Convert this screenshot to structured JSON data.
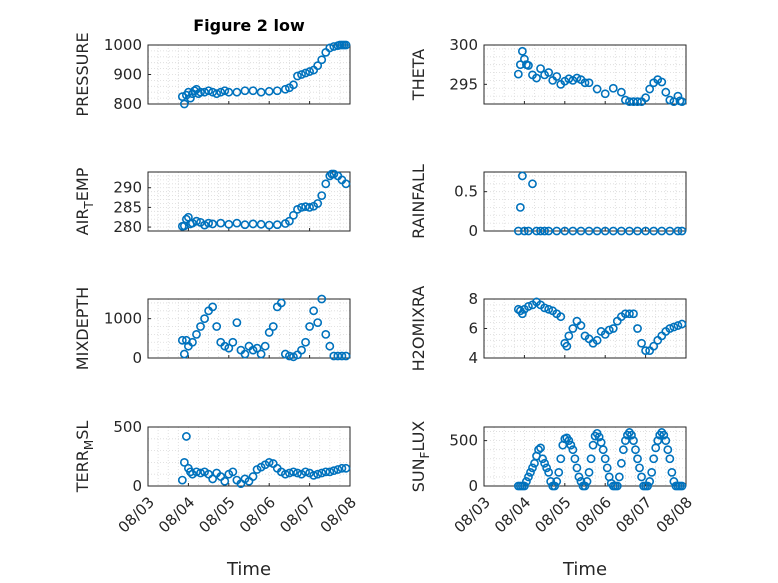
{
  "colors": {
    "marker": "#0072BD",
    "axis": "#262626",
    "grid": "#d9d9d9"
  },
  "chart_data": [
    {
      "type": "scatter",
      "title": "Figure 2 low",
      "ylabel": "PRESSURE",
      "ylim": [
        800,
        1000
      ],
      "yticks": [
        800,
        900,
        1000
      ],
      "grid": true,
      "x": [
        0.85,
        0.9,
        0.95,
        1.0,
        1.05,
        1.1,
        1.15,
        1.2,
        1.25,
        1.3,
        1.4,
        1.5,
        1.6,
        1.7,
        1.8,
        1.9,
        2.0,
        2.2,
        2.4,
        2.6,
        2.8,
        3.0,
        3.2,
        3.4,
        3.5,
        3.6,
        3.7,
        3.8,
        3.9,
        4.0,
        4.1,
        4.2,
        4.3,
        4.4,
        4.5,
        4.6,
        4.7,
        4.75,
        4.8,
        4.85,
        4.9
      ],
      "y": [
        825,
        800,
        830,
        840,
        820,
        835,
        845,
        850,
        835,
        840,
        840,
        845,
        840,
        835,
        840,
        845,
        840,
        840,
        845,
        845,
        840,
        843,
        845,
        850,
        855,
        865,
        895,
        900,
        905,
        910,
        915,
        930,
        950,
        975,
        990,
        995,
        998,
        1000,
        1000,
        1000,
        1000
      ]
    },
    {
      "type": "scatter",
      "ylabel": "THETA",
      "ylim": [
        292.5,
        300
      ],
      "yticks": [
        295,
        300
      ],
      "grid": true,
      "x": [
        0.85,
        0.9,
        0.95,
        1.0,
        1.05,
        1.1,
        1.2,
        1.3,
        1.4,
        1.5,
        1.6,
        1.7,
        1.8,
        1.9,
        2.0,
        2.1,
        2.2,
        2.3,
        2.4,
        2.5,
        2.6,
        2.8,
        3.0,
        3.2,
        3.4,
        3.5,
        3.6,
        3.7,
        3.8,
        3.9,
        4.0,
        4.1,
        4.2,
        4.3,
        4.4,
        4.5,
        4.6,
        4.7,
        4.8,
        4.85,
        4.9
      ],
      "y": [
        296.3,
        297.5,
        299.2,
        298.2,
        297.5,
        297.4,
        296.2,
        295.8,
        297.0,
        296.2,
        296.5,
        295.5,
        296.0,
        295.0,
        295.4,
        295.7,
        295.5,
        295.8,
        295.6,
        295.2,
        295.2,
        294.4,
        293.8,
        294.5,
        294.0,
        293.0,
        292.8,
        292.8,
        292.8,
        292.8,
        293.3,
        294.4,
        295.2,
        295.6,
        295.3,
        294.0,
        293.0,
        292.8,
        293.5,
        292.9,
        292.8
      ]
    },
    {
      "type": "scatter",
      "ylabel": "AIR_TEMP",
      "ylim": [
        279,
        294
      ],
      "yticks": [
        280,
        285,
        290
      ],
      "grid": true,
      "x": [
        0.85,
        0.9,
        0.95,
        1.0,
        1.05,
        1.1,
        1.2,
        1.3,
        1.4,
        1.5,
        1.6,
        1.8,
        2.0,
        2.2,
        2.4,
        2.6,
        2.8,
        3.0,
        3.2,
        3.4,
        3.5,
        3.6,
        3.7,
        3.8,
        3.9,
        4.0,
        4.1,
        4.2,
        4.3,
        4.4,
        4.5,
        4.55,
        4.6,
        4.7,
        4.8,
        4.9
      ],
      "y": [
        280.2,
        280.3,
        282.0,
        282.5,
        280.8,
        281.0,
        281.5,
        281.2,
        280.5,
        281.0,
        280.8,
        281.0,
        280.7,
        281.0,
        280.6,
        280.8,
        280.7,
        280.5,
        280.6,
        280.9,
        281.5,
        283.0,
        284.5,
        285.0,
        285.2,
        285.0,
        285.3,
        286.0,
        288.0,
        291.0,
        293.0,
        293.5,
        293.5,
        293.0,
        292.0,
        291.0
      ]
    },
    {
      "type": "scatter",
      "ylabel": "RAINFALL",
      "ylim": [
        0,
        0.75
      ],
      "yticks": [
        0,
        0.5
      ],
      "grid": true,
      "x": [
        0.85,
        0.9,
        0.95,
        1.0,
        1.1,
        1.2,
        1.3,
        1.4,
        1.5,
        1.6,
        1.8,
        2.0,
        2.2,
        2.4,
        2.6,
        2.8,
        3.0,
        3.2,
        3.4,
        3.6,
        3.8,
        4.0,
        4.2,
        4.4,
        4.6,
        4.8,
        4.9
      ],
      "y": [
        0,
        0.3,
        0.7,
        0,
        0,
        0.6,
        0,
        0,
        0,
        0,
        0,
        0,
        0,
        0,
        0,
        0,
        0,
        0,
        0,
        0,
        0,
        0,
        0,
        0,
        0,
        0,
        0
      ]
    },
    {
      "type": "scatter",
      "ylabel": "MIXDEPTH",
      "ylim": [
        0,
        1500
      ],
      "yticks": [
        0,
        1000
      ],
      "grid": true,
      "x": [
        0.85,
        0.9,
        0.95,
        1.0,
        1.1,
        1.2,
        1.3,
        1.4,
        1.5,
        1.6,
        1.7,
        1.8,
        1.9,
        2.0,
        2.1,
        2.2,
        2.3,
        2.4,
        2.5,
        2.6,
        2.7,
        2.8,
        2.9,
        3.0,
        3.1,
        3.2,
        3.3,
        3.4,
        3.5,
        3.6,
        3.7,
        3.8,
        3.9,
        4.0,
        4.1,
        4.2,
        4.3,
        4.4,
        4.5,
        4.6,
        4.7,
        4.8,
        4.9
      ],
      "y": [
        450,
        100,
        450,
        300,
        400,
        600,
        800,
        1000,
        1200,
        1300,
        800,
        400,
        300,
        250,
        400,
        900,
        200,
        100,
        300,
        200,
        250,
        100,
        300,
        650,
        800,
        1300,
        1400,
        100,
        50,
        30,
        80,
        200,
        400,
        800,
        1200,
        900,
        1500,
        600,
        300,
        50,
        50,
        50,
        50
      ]
    },
    {
      "type": "scatter",
      "ylabel": "H2OMIXRA",
      "ylim": [
        4,
        8
      ],
      "yticks": [
        4,
        6,
        8
      ],
      "grid": true,
      "x": [
        0.85,
        0.9,
        0.95,
        1.0,
        1.1,
        1.2,
        1.3,
        1.4,
        1.5,
        1.6,
        1.7,
        1.8,
        1.9,
        2.0,
        2.05,
        2.1,
        2.2,
        2.3,
        2.4,
        2.5,
        2.6,
        2.7,
        2.8,
        2.9,
        3.0,
        3.1,
        3.2,
        3.3,
        3.4,
        3.5,
        3.6,
        3.7,
        3.8,
        3.9,
        4.0,
        4.1,
        4.2,
        4.3,
        4.4,
        4.5,
        4.6,
        4.7,
        4.8,
        4.9
      ],
      "y": [
        7.3,
        7.2,
        7.0,
        7.3,
        7.5,
        7.6,
        7.8,
        7.6,
        7.4,
        7.3,
        7.2,
        7.0,
        6.8,
        5.0,
        4.8,
        5.5,
        6.0,
        6.5,
        6.2,
        5.5,
        5.3,
        5.0,
        5.2,
        5.8,
        5.6,
        5.9,
        6.0,
        6.5,
        6.8,
        7.0,
        7.0,
        7.0,
        6.0,
        5.0,
        4.5,
        4.5,
        4.8,
        5.2,
        5.5,
        5.8,
        6.0,
        6.1,
        6.2,
        6.3
      ]
    },
    {
      "type": "scatter",
      "ylabel": "TERR_MSL",
      "ylim": [
        0,
        500
      ],
      "yticks": [
        0,
        500
      ],
      "grid": true,
      "x": [
        0.85,
        0.9,
        0.95,
        1.0,
        1.05,
        1.1,
        1.2,
        1.3,
        1.4,
        1.5,
        1.6,
        1.7,
        1.8,
        1.9,
        2.0,
        2.1,
        2.2,
        2.3,
        2.4,
        2.5,
        2.6,
        2.7,
        2.8,
        2.9,
        3.0,
        3.1,
        3.2,
        3.3,
        3.4,
        3.5,
        3.6,
        3.7,
        3.8,
        3.9,
        4.0,
        4.1,
        4.2,
        4.3,
        4.4,
        4.5,
        4.6,
        4.7,
        4.8,
        4.9
      ],
      "y": [
        50,
        200,
        420,
        150,
        120,
        100,
        120,
        110,
        120,
        100,
        60,
        110,
        80,
        40,
        100,
        120,
        50,
        20,
        60,
        40,
        80,
        140,
        160,
        180,
        200,
        190,
        150,
        120,
        100,
        110,
        120,
        110,
        100,
        120,
        110,
        90,
        100,
        110,
        120,
        120,
        130,
        140,
        150,
        150
      ]
    },
    {
      "type": "scatter",
      "ylabel": "SUN_FLUX",
      "ylim": [
        0,
        650
      ],
      "yticks": [
        0,
        500
      ],
      "grid": true,
      "x": [
        0.85,
        0.9,
        0.95,
        1.0,
        1.05,
        1.1,
        1.15,
        1.2,
        1.25,
        1.3,
        1.35,
        1.4,
        1.45,
        1.5,
        1.55,
        1.6,
        1.65,
        1.7,
        1.75,
        1.8,
        1.85,
        1.9,
        1.95,
        2.0,
        2.05,
        2.1,
        2.15,
        2.2,
        2.25,
        2.3,
        2.35,
        2.4,
        2.45,
        2.5,
        2.55,
        2.6,
        2.65,
        2.7,
        2.75,
        2.8,
        2.85,
        2.9,
        2.95,
        3.0,
        3.05,
        3.1,
        3.15,
        3.2,
        3.25,
        3.3,
        3.35,
        3.4,
        3.45,
        3.5,
        3.55,
        3.6,
        3.65,
        3.7,
        3.75,
        3.8,
        3.85,
        3.9,
        3.95,
        4.0,
        4.05,
        4.1,
        4.15,
        4.2,
        4.25,
        4.3,
        4.35,
        4.4,
        4.45,
        4.5,
        4.55,
        4.6,
        4.65,
        4.7,
        4.75,
        4.8,
        4.85,
        4.9
      ],
      "y": [
        0,
        0,
        0,
        0,
        50,
        100,
        150,
        200,
        250,
        330,
        400,
        420,
        300,
        250,
        200,
        150,
        50,
        0,
        0,
        50,
        150,
        300,
        450,
        520,
        530,
        500,
        450,
        400,
        300,
        200,
        100,
        50,
        0,
        0,
        50,
        150,
        300,
        450,
        550,
        580,
        540,
        480,
        400,
        300,
        200,
        100,
        30,
        0,
        0,
        0,
        100,
        250,
        400,
        500,
        560,
        590,
        560,
        500,
        400,
        300,
        200,
        100,
        0,
        0,
        0,
        50,
        150,
        300,
        420,
        500,
        560,
        590,
        560,
        500,
        400,
        300,
        150,
        50,
        0,
        0,
        0,
        0
      ]
    }
  ],
  "x_axis": {
    "xlim": [
      0,
      5
    ],
    "tick_values": [
      0,
      1,
      2,
      3,
      4,
      5
    ],
    "tick_labels": [
      "08/03",
      "08/04",
      "08/05",
      "08/06",
      "08/07",
      "08/08"
    ],
    "label": "Time"
  }
}
